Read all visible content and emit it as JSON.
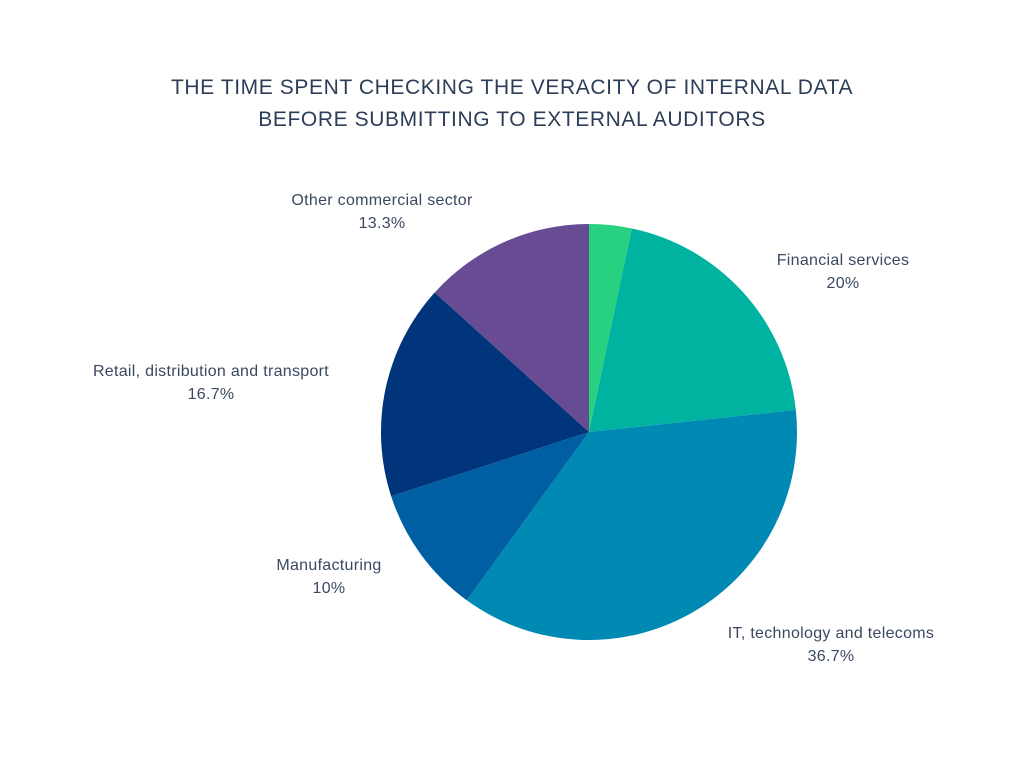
{
  "chart_data": {
    "type": "pie",
    "title_lines": [
      "THE TIME SPENT CHECKING THE VERACITY OF INTERNAL DATA",
      "BEFORE SUBMITTING TO EXTERNAL AUDITORS"
    ],
    "slices": [
      {
        "name": "",
        "value": 3.3,
        "color": "#27d17f",
        "label": "",
        "value_label": ""
      },
      {
        "name": "Financial services",
        "value": 20,
        "color": "#00b3a1",
        "label": "Financial services",
        "value_label": "20%"
      },
      {
        "name": "IT, technology and telecoms",
        "value": 36.7,
        "color": "#0089b2",
        "label": "IT, technology and telecoms",
        "value_label": "36.7%"
      },
      {
        "name": "Manufacturing",
        "value": 10,
        "color": "#005fa3",
        "label": "Manufacturing",
        "value_label": "10%"
      },
      {
        "name": "Retail, distribution and transport",
        "value": 16.7,
        "color": "#00357b",
        "label": "Retail, distribution and transport",
        "value_label": "16.7%"
      },
      {
        "name": "Other commercial sector",
        "value": 13.3,
        "color": "#674b93",
        "label": "Other commercial sector",
        "value_label": "13.3%"
      }
    ],
    "start_angle_deg": 0,
    "direction": "clockwise",
    "legend": "none"
  }
}
